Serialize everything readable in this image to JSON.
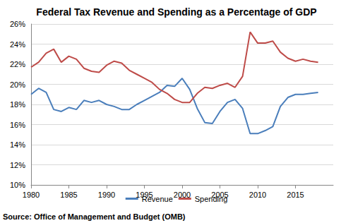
{
  "chart_data": {
    "type": "line",
    "title": "Federal Tax Revenue and Spending as a Percentage of GDP",
    "annotations": [
      "Source: Office of Management and Budget (OMB)"
    ],
    "x": [
      1980,
      1981,
      1982,
      1983,
      1984,
      1985,
      1986,
      1987,
      1988,
      1989,
      1990,
      1991,
      1992,
      1993,
      1994,
      1995,
      1996,
      1997,
      1998,
      1999,
      2000,
      2001,
      2002,
      2003,
      2004,
      2005,
      2006,
      2007,
      2008,
      2009,
      2010,
      2011,
      2012,
      2013,
      2014,
      2015,
      2016,
      2017,
      2018
    ],
    "series": [
      {
        "name": "Revenue",
        "color": "#4a7ebb",
        "values": [
          19.0,
          19.6,
          19.2,
          17.5,
          17.3,
          17.7,
          17.5,
          18.4,
          18.2,
          18.4,
          18.0,
          17.8,
          17.5,
          17.5,
          18.0,
          18.4,
          18.8,
          19.2,
          19.9,
          19.8,
          20.6,
          19.5,
          17.6,
          16.2,
          16.1,
          17.3,
          18.2,
          18.5,
          17.6,
          15.1,
          15.1,
          15.4,
          15.8,
          17.8,
          18.7,
          19.0,
          19.0,
          19.1,
          19.2
        ]
      },
      {
        "name": "Spending",
        "color": "#be4b48",
        "values": [
          21.7,
          22.2,
          23.1,
          23.5,
          22.2,
          22.8,
          22.5,
          21.6,
          21.3,
          21.2,
          21.9,
          22.3,
          22.1,
          21.4,
          21.0,
          20.6,
          20.2,
          19.5,
          19.1,
          18.5,
          18.2,
          18.2,
          19.1,
          19.7,
          19.6,
          19.9,
          20.1,
          19.7,
          20.8,
          25.2,
          24.1,
          24.1,
          24.3,
          23.2,
          22.6,
          22.3,
          22.5,
          22.3,
          22.2
        ]
      }
    ],
    "xlim": [
      1980,
      2020
    ],
    "xticks": [
      1980,
      1985,
      1990,
      1995,
      2000,
      2005,
      2010,
      2015
    ],
    "ylim": [
      10,
      26
    ],
    "yticks": [
      {
        "value": 10,
        "label": "10%"
      },
      {
        "value": 12,
        "label": "12%"
      },
      {
        "value": 14,
        "label": "14%"
      },
      {
        "value": 16,
        "label": "16%"
      },
      {
        "value": 18,
        "label": "18%"
      },
      {
        "value": 20,
        "label": "20%"
      },
      {
        "value": 22,
        "label": "22%"
      },
      {
        "value": 24,
        "label": "24%"
      },
      {
        "value": 26,
        "label": "26%"
      }
    ],
    "grid": true,
    "legend": "bottom"
  }
}
